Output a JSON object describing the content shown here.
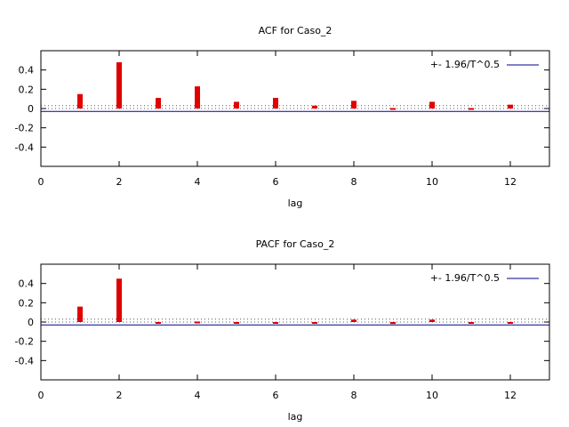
{
  "chart_data": [
    {
      "type": "bar",
      "title": "ACF for Caso_2",
      "xlabel": "lag",
      "ylabel": "",
      "xlim": [
        0,
        13
      ],
      "ylim": [
        -0.6,
        0.6
      ],
      "x_ticks": [
        0,
        2,
        4,
        6,
        8,
        10,
        12
      ],
      "y_ticks": [
        0.4,
        0.2,
        0,
        -0.2,
        -0.4
      ],
      "y_tick_labels": [
        "0.4",
        "0.2",
        "0",
        "-0.2",
        "-0.4"
      ],
      "x": [
        1,
        2,
        3,
        4,
        5,
        6,
        7,
        8,
        9,
        10,
        11,
        12
      ],
      "values": [
        0.15,
        0.48,
        0.11,
        0.23,
        0.07,
        0.11,
        0.03,
        0.08,
        0.005,
        0.07,
        0.005,
        0.04
      ],
      "bar_color": "#e00000",
      "confidence_band": 0.03,
      "legend": "+- 1.96/T^0.5",
      "legend_color": "#00008b",
      "legend_position": "top-right"
    },
    {
      "type": "bar",
      "title": "PACF for Caso_2",
      "xlabel": "lag",
      "ylabel": "",
      "xlim": [
        0,
        13
      ],
      "ylim": [
        -0.6,
        0.6
      ],
      "x_ticks": [
        0,
        2,
        4,
        6,
        8,
        10,
        12
      ],
      "y_ticks": [
        0.4,
        0.2,
        0,
        -0.2,
        -0.4
      ],
      "y_tick_labels": [
        "0.4",
        "0.2",
        "0",
        "-0.2",
        "-0.4"
      ],
      "x": [
        1,
        2,
        3,
        4,
        5,
        6,
        7,
        8,
        9,
        10,
        11,
        12
      ],
      "values": [
        0.16,
        0.45,
        -0.005,
        0.005,
        0.0,
        0.0,
        0.0,
        0.025,
        -0.02,
        0.025,
        0.0,
        0.0
      ],
      "bar_color": "#e00000",
      "confidence_band": 0.03,
      "legend": "+- 1.96/T^0.5",
      "legend_color": "#00008b",
      "legend_position": "top-right"
    }
  ]
}
